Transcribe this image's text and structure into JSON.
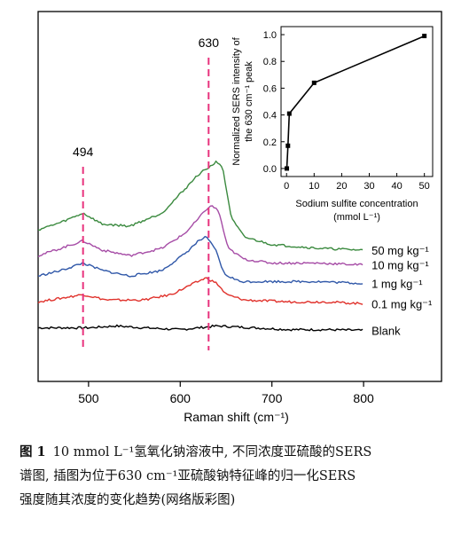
{
  "chart_data": [
    {
      "type": "line",
      "xlabel": "Raman shift (cm⁻¹)",
      "xlim": [
        445,
        885
      ],
      "x_ticks": [
        500,
        600,
        700,
        800
      ],
      "y_ticks_shown": false,
      "peak_labels": [
        {
          "text": "494",
          "x": 494
        },
        {
          "text": "630",
          "x": 630
        }
      ],
      "series": [
        {
          "name": "Blank",
          "color": "#000000",
          "points": [
            [
              445,
              0.145
            ],
            [
              470,
              0.145
            ],
            [
              500,
              0.145
            ],
            [
              530,
              0.15
            ],
            [
              560,
              0.145
            ],
            [
              600,
              0.14
            ],
            [
              640,
              0.15
            ],
            [
              680,
              0.145
            ],
            [
              720,
              0.14
            ],
            [
              760,
              0.14
            ],
            [
              800,
              0.138
            ]
          ]
        },
        {
          "name": "0.1 mg kg⁻¹",
          "color": "#e0312b",
          "points": [
            [
              445,
              0.215
            ],
            [
              470,
              0.225
            ],
            [
              494,
              0.235
            ],
            [
              520,
              0.22
            ],
            [
              560,
              0.22
            ],
            [
              590,
              0.235
            ],
            [
              615,
              0.265
            ],
            [
              628,
              0.28
            ],
            [
              640,
              0.265
            ],
            [
              650,
              0.235
            ],
            [
              670,
              0.22
            ],
            [
              720,
              0.215
            ],
            [
              760,
              0.215
            ],
            [
              800,
              0.21
            ]
          ]
        },
        {
          "name": "1 mg kg⁻¹",
          "color": "#2f57a8",
          "points": [
            [
              445,
              0.285
            ],
            [
              470,
              0.3
            ],
            [
              494,
              0.32
            ],
            [
              515,
              0.3
            ],
            [
              545,
              0.285
            ],
            [
              580,
              0.3
            ],
            [
              605,
              0.345
            ],
            [
              620,
              0.38
            ],
            [
              628,
              0.39
            ],
            [
              638,
              0.36
            ],
            [
              648,
              0.29
            ],
            [
              665,
              0.27
            ],
            [
              700,
              0.27
            ],
            [
              750,
              0.27
            ],
            [
              800,
              0.265
            ]
          ]
        },
        {
          "name": "10 mg kg⁻¹",
          "color": "#a64ca6",
          "points": [
            [
              445,
              0.34
            ],
            [
              470,
              0.36
            ],
            [
              494,
              0.38
            ],
            [
              515,
              0.355
            ],
            [
              545,
              0.34
            ],
            [
              580,
              0.36
            ],
            [
              605,
              0.4
            ],
            [
              620,
              0.44
            ],
            [
              628,
              0.465
            ],
            [
              635,
              0.475
            ],
            [
              642,
              0.46
            ],
            [
              652,
              0.36
            ],
            [
              670,
              0.33
            ],
            [
              700,
              0.32
            ],
            [
              750,
              0.32
            ],
            [
              800,
              0.315
            ]
          ]
        },
        {
          "name": "50 mg kg⁻¹",
          "color": "#3b8a3f",
          "points": [
            [
              445,
              0.41
            ],
            [
              470,
              0.43
            ],
            [
              494,
              0.455
            ],
            [
              515,
              0.425
            ],
            [
              545,
              0.42
            ],
            [
              580,
              0.455
            ],
            [
              605,
              0.52
            ],
            [
              620,
              0.56
            ],
            [
              632,
              0.58
            ],
            [
              640,
              0.595
            ],
            [
              646,
              0.58
            ],
            [
              656,
              0.44
            ],
            [
              670,
              0.39
            ],
            [
              700,
              0.37
            ],
            [
              750,
              0.36
            ],
            [
              800,
              0.355
            ]
          ]
        }
      ]
    },
    {
      "type": "line",
      "xlabel": "Sodium sulfite concentration\n(mmol L⁻¹)",
      "ylabel": "Normalized SERS intensity of\nthe 630 cm⁻¹ peak",
      "xlim": [
        -2,
        53
      ],
      "ylim": [
        -0.06,
        1.06
      ],
      "x_ticks": [
        0,
        10,
        20,
        30,
        40,
        50
      ],
      "y_ticks": [
        0.0,
        0.2,
        0.4,
        0.6,
        0.8,
        1.0
      ],
      "x": [
        0.1,
        0.5,
        1,
        10,
        50
      ],
      "y": [
        0.0,
        0.17,
        0.41,
        0.64,
        0.99
      ],
      "color": "#000000",
      "marker": "square"
    }
  ],
  "caption": {
    "figure_label": "图 1",
    "line1_rest": "10 mmol L⁻¹氢氧化钠溶液中, 不同浓度亚硫酸的SERS",
    "line2": "谱图, 插图为位于630 cm⁻¹亚硫酸钠特征峰的归一化SERS",
    "line3": "强度随其浓度的变化趋势(网络版彩图)"
  }
}
